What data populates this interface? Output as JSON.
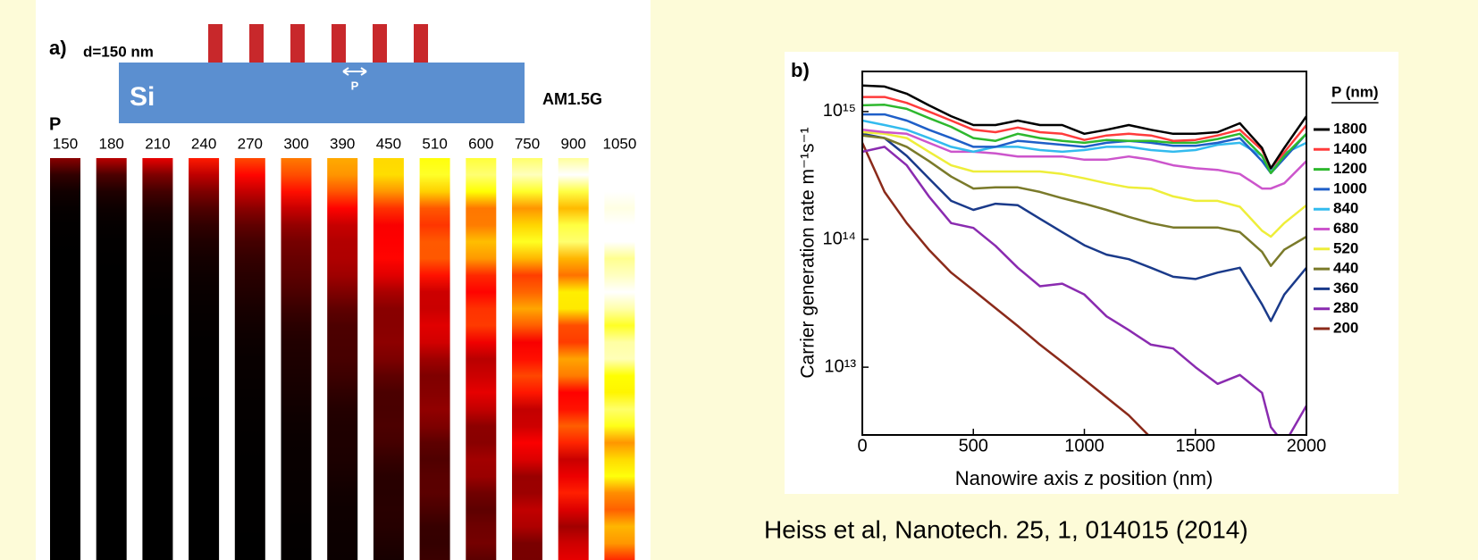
{
  "figure_a": {
    "label": "a)",
    "diameter": "d=150 nm",
    "substrate": "Si",
    "pitch": "P",
    "spectrum": "AM1.5G",
    "period_label": "P",
    "periods": [
      150,
      180,
      210,
      240,
      270,
      300,
      390,
      450,
      510,
      600,
      750,
      900,
      1050
    ]
  },
  "chart_data": {
    "type": "line",
    "label": "b)",
    "x_label": "Nanowire axis z position (nm)",
    "y_label": "Carrier generation rate m⁻¹s⁻¹",
    "log_y": true,
    "legend": "right",
    "legend_title": "P (nm)",
    "xlim": [
      0,
      2000
    ],
    "xticks": [
      0,
      500,
      1000,
      1500,
      2000
    ],
    "ylim": [
      2950000000000.0,
      2060000000000000.0
    ],
    "yticks": [
      {
        "value": 10000000000000.0,
        "label": "10¹³"
      },
      {
        "value": 100000000000000.0,
        "label": "10¹⁴"
      },
      {
        "value": 1000000000000000.0,
        "label": "10¹⁵"
      }
    ],
    "x": [
      0,
      100,
      200,
      300,
      400,
      500,
      600,
      700,
      800,
      900,
      1000,
      1100,
      1200,
      1300,
      1400,
      1500,
      1600,
      1700,
      1800,
      1840,
      1900,
      2000
    ],
    "series": [
      {
        "name": "1800",
        "color": "#000000",
        "values": [
          1600000000000000.0,
          1570000000000000.0,
          1380000000000000.0,
          1120000000000000.0,
          920000000000000.0,
          785000000000000.0,
          785000000000000.0,
          850000000000000.0,
          785000000000000.0,
          785000000000000.0,
          670000000000000.0,
          720000000000000.0,
          785000000000000.0,
          720000000000000.0,
          670000000000000.0,
          670000000000000.0,
          690000000000000.0,
          810000000000000.0,
          520000000000000.0,
          360000000000000.0,
          520000000000000.0,
          920000000000000.0
        ]
      },
      {
        "name": "1400",
        "color": "#ff3b3b",
        "values": [
          1300000000000000.0,
          1300000000000000.0,
          1170000000000000.0,
          1000000000000000.0,
          850000000000000.0,
          720000000000000.0,
          690000000000000.0,
          750000000000000.0,
          690000000000000.0,
          670000000000000.0,
          600000000000000.0,
          650000000000000.0,
          670000000000000.0,
          650000000000000.0,
          590000000000000.0,
          600000000000000.0,
          650000000000000.0,
          720000000000000.0,
          500000000000000.0,
          360000000000000.0,
          480000000000000.0,
          785000000000000.0
        ]
      },
      {
        "name": "1200",
        "color": "#2eb82e",
        "values": [
          1120000000000000.0,
          1130000000000000.0,
          1050000000000000.0,
          890000000000000.0,
          760000000000000.0,
          620000000000000.0,
          590000000000000.0,
          670000000000000.0,
          620000000000000.0,
          590000000000000.0,
          570000000000000.0,
          600000000000000.0,
          590000000000000.0,
          590000000000000.0,
          570000000000000.0,
          570000000000000.0,
          610000000000000.0,
          670000000000000.0,
          450000000000000.0,
          330000000000000.0,
          450000000000000.0,
          670000000000000.0
        ]
      },
      {
        "name": "1000",
        "color": "#1f5fc8",
        "values": [
          950000000000000.0,
          950000000000000.0,
          850000000000000.0,
          720000000000000.0,
          620000000000000.0,
          530000000000000.0,
          530000000000000.0,
          590000000000000.0,
          570000000000000.0,
          550000000000000.0,
          530000000000000.0,
          570000000000000.0,
          590000000000000.0,
          570000000000000.0,
          540000000000000.0,
          540000000000000.0,
          570000000000000.0,
          620000000000000.0,
          410000000000000.0,
          330000000000000.0,
          430000000000000.0,
          670000000000000.0
        ]
      },
      {
        "name": "840",
        "color": "#33bbee",
        "values": [
          850000000000000.0,
          785000000000000.0,
          720000000000000.0,
          620000000000000.0,
          530000000000000.0,
          485000000000000.0,
          530000000000000.0,
          530000000000000.0,
          500000000000000.0,
          485000000000000.0,
          500000000000000.0,
          530000000000000.0,
          530000000000000.0,
          500000000000000.0,
          485000000000000.0,
          500000000000000.0,
          550000000000000.0,
          570000000000000.0,
          450000000000000.0,
          350000000000000.0,
          470000000000000.0,
          570000000000000.0
        ]
      },
      {
        "name": "680",
        "color": "#cc55cc",
        "values": [
          720000000000000.0,
          690000000000000.0,
          670000000000000.0,
          570000000000000.0,
          485000000000000.0,
          485000000000000.0,
          470000000000000.0,
          445000000000000.0,
          445000000000000.0,
          445000000000000.0,
          420000000000000.0,
          420000000000000.0,
          445000000000000.0,
          420000000000000.0,
          380000000000000.0,
          360000000000000.0,
          350000000000000.0,
          325000000000000.0,
          250000000000000.0,
          250000000000000.0,
          275000000000000.0,
          410000000000000.0
        ]
      },
      {
        "name": "520",
        "color": "#eeee3a",
        "values": [
          690000000000000.0,
          670000000000000.0,
          620000000000000.0,
          485000000000000.0,
          380000000000000.0,
          340000000000000.0,
          340000000000000.0,
          340000000000000.0,
          340000000000000.0,
          325000000000000.0,
          300000000000000.0,
          275000000000000.0,
          255000000000000.0,
          250000000000000.0,
          217000000000000.0,
          200000000000000.0,
          200000000000000.0,
          180000000000000.0,
          117000000000000.0,
          105000000000000.0,
          134000000000000.0,
          185000000000000.0
        ]
      },
      {
        "name": "440",
        "color": "#7a7a2a",
        "values": [
          650000000000000.0,
          620000000000000.0,
          530000000000000.0,
          410000000000000.0,
          310000000000000.0,
          250000000000000.0,
          255000000000000.0,
          255000000000000.0,
          235000000000000.0,
          210000000000000.0,
          190000000000000.0,
          170000000000000.0,
          150000000000000.0,
          134000000000000.0,
          124000000000000.0,
          124000000000000.0,
          124000000000000.0,
          114000000000000.0,
          80000000000000.0,
          62000000000000.0,
          83000000000000.0,
          105000000000000.0
        ]
      },
      {
        "name": "360",
        "color": "#1a3a8a",
        "values": [
          670000000000000.0,
          620000000000000.0,
          450000000000000.0,
          300000000000000.0,
          200000000000000.0,
          170000000000000.0,
          190000000000000.0,
          185000000000000.0,
          145000000000000.0,
          114000000000000.0,
          90000000000000.0,
          76000000000000.0,
          70000000000000.0,
          60000000000000.0,
          51000000000000.0,
          49000000000000.0,
          55000000000000.0,
          60000000000000.0,
          31000000000000.0,
          23000000000000.0,
          37000000000000.0,
          60000000000000.0
        ]
      },
      {
        "name": "280",
        "color": "#8a2bb0",
        "values": [
          485000000000000.0,
          530000000000000.0,
          380000000000000.0,
          217000000000000.0,
          134000000000000.0,
          123000000000000.0,
          89000000000000.0,
          60000000000000.0,
          43000000000000.0,
          45000000000000.0,
          37000000000000.0,
          25000000000000.0,
          19500000000000.0,
          15000000000000.0,
          14000000000000.0,
          10000000000000.0,
          7400000000000.0,
          8700000000000.0,
          6300000000000.0,
          3400000000000.0,
          2500000000000.0,
          5000000000000.0
        ]
      },
      {
        "name": "200",
        "color": "#8b2a1a",
        "values": [
          570000000000000.0,
          235000000000000.0,
          134000000000000.0,
          83000000000000.0,
          55000000000000.0,
          40000000000000.0,
          29000000000000.0,
          21000000000000.0,
          15000000000000.0,
          11000000000000.0,
          8000000000000.0,
          5800000000000.0,
          4200000000000.0,
          2800000000000.0,
          null,
          null,
          null,
          null,
          null,
          null,
          null,
          null
        ]
      }
    ]
  },
  "caption": "Heiss et al, Nanotech. 25, 1, 014015 (2014)"
}
